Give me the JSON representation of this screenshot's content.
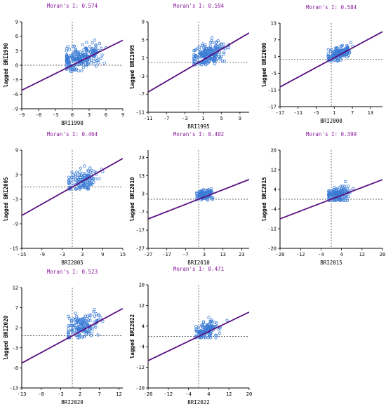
{
  "colors": {
    "title": "#8b1a9e",
    "point": "#3a7bd5",
    "line": "#5a1080",
    "axis": "#000000"
  },
  "chart_data": [
    {
      "type": "scatter",
      "title": "Moran's I: 0.574",
      "xlabel": "BRI1990",
      "ylabel": "lagged BRI1990",
      "xlim": [
        -9,
        9
      ],
      "ylim": [
        -9,
        9
      ],
      "xticks": [
        "-9",
        "-6",
        "-3",
        "0",
        "3",
        "6",
        "9"
      ],
      "yticks": [
        "9",
        "6",
        "3",
        "0",
        "-3",
        "-6",
        "-9"
      ],
      "slope": 0.574,
      "seed": 1,
      "n": 230,
      "xmean": 1.4,
      "xsd": 1.8,
      "xmin": -1,
      "xmax": 8,
      "ymean": 1.5,
      "ysd": 1.2,
      "ymin": -1.3,
      "ymax": 6
    },
    {
      "type": "scatter",
      "title": "Moran's I: 0.594",
      "xlabel": "BRI1995",
      "ylabel": "lagged BRI1995",
      "xlim": [
        -11,
        11
      ],
      "ylim": [
        -11,
        9
      ],
      "xticks": [
        "-11",
        "-7",
        "-3",
        "1",
        "5",
        "9"
      ],
      "yticks": [
        "9",
        "5",
        "1",
        "-3",
        "-7",
        "-11"
      ],
      "slope": 0.594,
      "seed": 2,
      "n": 200,
      "xmean": 2.2,
      "xsd": 1.9,
      "xmin": -1,
      "xmax": 9,
      "ymean": 1.7,
      "ysd": 1.3,
      "ymin": -0.5,
      "ymax": 5.5
    },
    {
      "type": "scatter",
      "title": "Moran's I: 0.584",
      "xlabel": "BRI2000",
      "ylabel": "lagged BRI2000",
      "xlim": [
        -17,
        17
      ],
      "ylim": [
        -17,
        13
      ],
      "xticks": [
        "-17",
        "-11",
        "-5",
        "1",
        "7",
        "13"
      ],
      "yticks": [
        "13",
        "7",
        "1",
        "-5",
        "-11",
        "-17"
      ],
      "slope": 0.584,
      "seed": 3,
      "n": 150,
      "xmean": 2.5,
      "xsd": 2.2,
      "xmin": -1,
      "xmax": 14,
      "ymean": 2.0,
      "ysd": 1.4,
      "ymin": -0.5,
      "ymax": 6
    },
    {
      "type": "scatter",
      "title": "Moran's I: 0.464",
      "xlabel": "BRI2005",
      "ylabel": "lagged BRI2005",
      "xlim": [
        -15,
        15
      ],
      "ylim": [
        -15,
        9
      ],
      "xticks": [
        "-15",
        "-9",
        "-3",
        "3",
        "9",
        "15"
      ],
      "yticks": [
        "9",
        "3",
        "-3",
        "-9",
        "-15"
      ],
      "slope": 0.464,
      "seed": 4,
      "n": 130,
      "xmean": 3.0,
      "xsd": 2.4,
      "xmin": -1,
      "xmax": 11,
      "ymean": 1.6,
      "ysd": 1.3,
      "ymin": -0.5,
      "ymax": 6.5
    },
    {
      "type": "scatter",
      "title": "Moran's I: 0.402",
      "xlabel": "BRI2010",
      "ylabel": "lagged BRI2010",
      "xlim": [
        -27,
        27
      ],
      "ylim": [
        -27,
        27
      ],
      "xticks": [
        "-27",
        "-17",
        "-7",
        "3",
        "13",
        "23"
      ],
      "yticks": [
        "23",
        "13",
        "3",
        "-7",
        "-17",
        "-27"
      ],
      "slope": 0.402,
      "seed": 5,
      "n": 110,
      "xmean": 3.0,
      "xsd": 2.5,
      "xmin": -1,
      "xmax": 22,
      "ymean": 2.8,
      "ysd": 1.5,
      "ymin": -0.5,
      "ymax": 7
    },
    {
      "type": "scatter",
      "title": "Moran's I: 0.399",
      "xlabel": "BRI2015",
      "ylabel": "lagged BRI2015",
      "xlim": [
        -20,
        20
      ],
      "ylim": [
        -20,
        20
      ],
      "xticks": [
        "-20",
        "-12",
        "-4",
        "4",
        "12",
        "20"
      ],
      "yticks": [
        "20",
        "12",
        "4",
        "-4",
        "-12",
        "-20"
      ],
      "slope": 0.399,
      "seed": 6,
      "n": 150,
      "xmean": 2.8,
      "xsd": 2.4,
      "xmin": -1,
      "xmax": 17,
      "ymean": 2.2,
      "ysd": 1.6,
      "ymin": -0.5,
      "ymax": 8
    },
    {
      "type": "scatter",
      "title": "Moran's I: 0.523",
      "xlabel": "BRI2020",
      "ylabel": "lagged BRI2020",
      "xlim": [
        -13,
        13
      ],
      "ylim": [
        -13,
        12
      ],
      "xticks": [
        "-13",
        "-8",
        "-3",
        "2",
        "7",
        "12"
      ],
      "yticks": [
        "12",
        "7",
        "2",
        "-3",
        "-8",
        "-13"
      ],
      "slope": 0.523,
      "seed": 7,
      "n": 150,
      "xmean": 2.3,
      "xsd": 2.2,
      "xmin": -1,
      "xmax": 10,
      "ymean": 2.2,
      "ysd": 1.5,
      "ymin": -0.5,
      "ymax": 8.5
    },
    {
      "type": "scatter",
      "title": "Moran's I: 0.471",
      "xlabel": "BRI2022",
      "ylabel": "lagged BRI2022",
      "xlim": [
        -20,
        20
      ],
      "ylim": [
        -20,
        20
      ],
      "xticks": [
        "-20",
        "-12",
        "-4",
        "4",
        "12",
        "20"
      ],
      "yticks": [
        "20",
        "12",
        "4",
        "-4",
        "-12",
        "-20"
      ],
      "slope": 0.471,
      "seed": 8,
      "n": 130,
      "xmean": 3.0,
      "xsd": 2.6,
      "xmin": -1,
      "xmax": 16,
      "ymean": 2.4,
      "ysd": 1.7,
      "ymin": -0.5,
      "ymax": 9
    }
  ]
}
